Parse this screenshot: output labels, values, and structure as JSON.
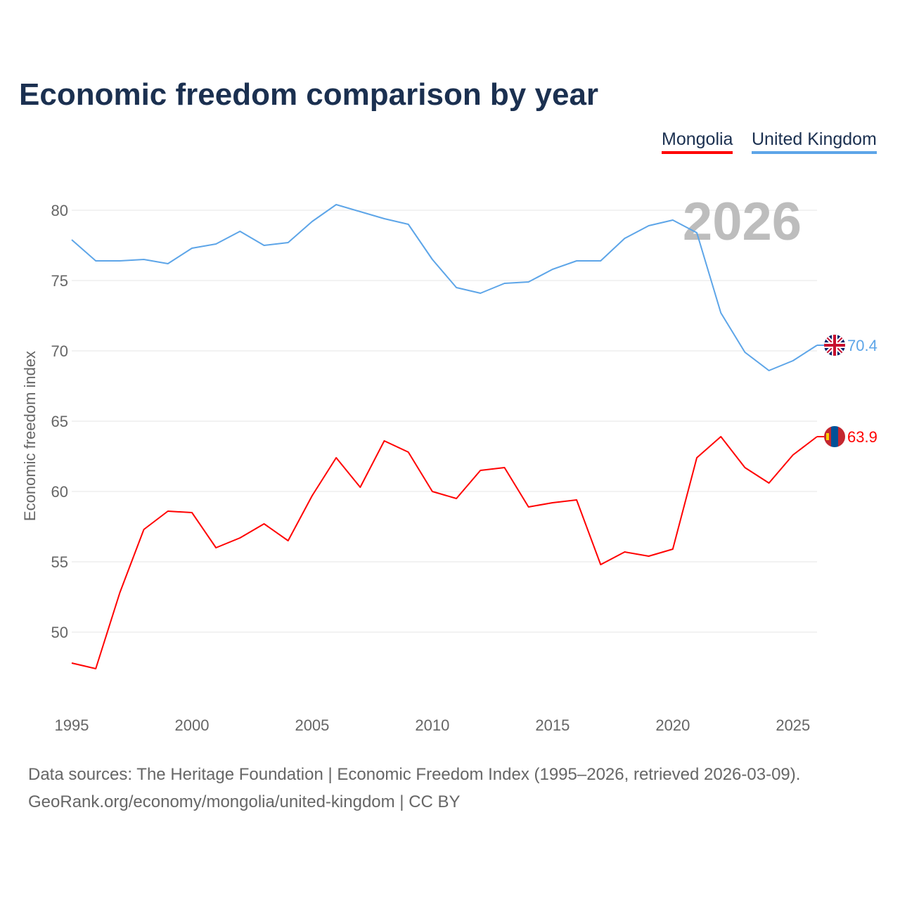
{
  "chart_data": {
    "type": "line",
    "title": "Economic freedom comparison by year",
    "xlabel": "",
    "ylabel": "Economic freedom index",
    "xlim": [
      1995,
      2026
    ],
    "ylim": [
      45,
      82
    ],
    "grid": true,
    "legend_placement": "top-right",
    "xticks": [
      1995,
      2000,
      2005,
      2010,
      2015,
      2020,
      2025
    ],
    "yticks": [
      50,
      55,
      60,
      65,
      70,
      75,
      80
    ],
    "watermark_year": "2026",
    "x": [
      1995,
      1996,
      1997,
      1998,
      1999,
      2000,
      2001,
      2002,
      2003,
      2004,
      2005,
      2006,
      2007,
      2008,
      2009,
      2010,
      2011,
      2012,
      2013,
      2014,
      2015,
      2016,
      2017,
      2018,
      2019,
      2020,
      2021,
      2022,
      2023,
      2024,
      2025,
      2026
    ],
    "series": [
      {
        "name": "Mongolia",
        "color": "#ff0000",
        "end_label": "63.9",
        "values": [
          47.8,
          47.4,
          52.8,
          57.3,
          58.6,
          58.5,
          56.0,
          56.7,
          57.7,
          56.5,
          59.7,
          62.4,
          60.3,
          63.6,
          62.8,
          60.0,
          59.5,
          61.5,
          61.7,
          58.9,
          59.2,
          59.4,
          54.8,
          55.7,
          55.4,
          55.9,
          62.4,
          63.9,
          61.7,
          60.6,
          62.6,
          63.9
        ]
      },
      {
        "name": "United Kingdom",
        "color": "#5da5e8",
        "end_label": "70.4",
        "values": [
          77.9,
          76.4,
          76.4,
          76.5,
          76.2,
          77.3,
          77.6,
          78.5,
          77.5,
          77.7,
          79.2,
          80.4,
          79.9,
          79.4,
          79.0,
          76.5,
          74.5,
          74.1,
          74.8,
          74.9,
          75.8,
          76.4,
          76.4,
          78.0,
          78.9,
          79.3,
          78.4,
          72.7,
          69.9,
          68.6,
          69.3,
          70.4
        ]
      }
    ]
  },
  "footer": {
    "line1": "Data sources: The Heritage Foundation | Economic Freedom Index (1995–2026, retrieved 2026-03-09).",
    "line2": "GeoRank.org/economy/mongolia/united-kingdom | CC BY"
  }
}
